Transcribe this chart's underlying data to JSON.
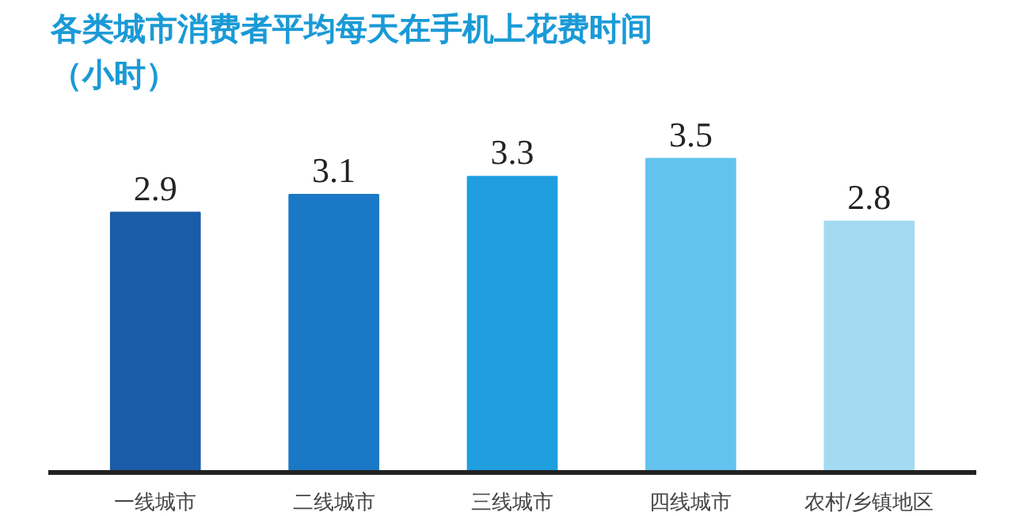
{
  "chart_data": {
    "type": "bar",
    "title": "各类城市消费者平均每天在手机上花费时间（小时）",
    "categories": [
      "一线城市",
      "二线城市",
      "三线城市",
      "四线城市",
      "农村/乡镇地区"
    ],
    "values": [
      2.9,
      3.1,
      3.3,
      3.5,
      2.8
    ],
    "colors": [
      "#1a5ca8",
      "#1b78c6",
      "#1f9ee0",
      "#62c4ee",
      "#a3daf2"
    ],
    "tick_labels": "x",
    "data_labels": true
  }
}
